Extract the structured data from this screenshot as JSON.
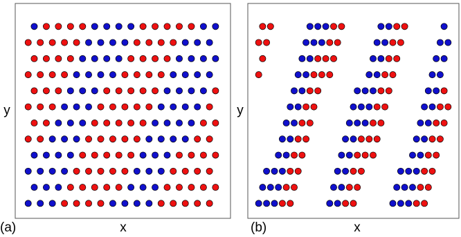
{
  "chart_data": [
    {
      "type": "scatter",
      "label": "(a)",
      "xlabel": "x",
      "ylabel": "y",
      "xlim": [
        0,
        100
      ],
      "ylim": [
        0,
        100
      ],
      "series": [
        {
          "color": "#ee1111",
          "x": [
            21,
            27,
            33,
            39,
            69,
            75,
            81,
            87,
            93,
            24,
            30,
            36,
            42,
            48,
            72,
            78,
            84,
            90,
            96,
            27,
            33,
            39,
            45,
            51,
            75,
            81,
            87,
            93,
            30,
            36,
            42,
            48,
            54,
            78,
            84,
            90,
            96,
            3,
            9,
            33,
            39,
            45,
            51,
            57,
            87,
            93,
            6,
            12,
            36,
            42,
            48,
            54,
            60,
            90,
            96,
            3,
            9,
            15,
            39,
            45,
            51,
            57,
            63,
            93,
            6,
            12,
            18,
            42,
            48,
            54,
            60,
            66,
            96,
            3,
            9,
            15,
            21,
            51,
            57,
            63,
            69,
            6,
            12,
            18,
            24,
            54,
            60,
            66,
            72,
            3,
            9,
            15,
            21,
            27,
            57,
            63,
            69,
            75,
            12,
            18,
            24,
            30,
            60,
            66,
            72,
            78,
            84
          ],
          "values": [
            4,
            4,
            4,
            4,
            4,
            4,
            4,
            4,
            4,
            12,
            12,
            12,
            12,
            12,
            12,
            12,
            12,
            12,
            12,
            20,
            20,
            20,
            20,
            20,
            20,
            20,
            20,
            20,
            28,
            28,
            28,
            28,
            28,
            28,
            28,
            28,
            28,
            36,
            36,
            36,
            36,
            36,
            36,
            36,
            36,
            36,
            44,
            44,
            44,
            44,
            44,
            44,
            44,
            44,
            44,
            52,
            52,
            52,
            52,
            52,
            52,
            52,
            52,
            52,
            60,
            60,
            60,
            60,
            60,
            60,
            60,
            60,
            60,
            68,
            68,
            68,
            68,
            68,
            68,
            68,
            68,
            76,
            76,
            76,
            76,
            76,
            76,
            76,
            76,
            84,
            84,
            84,
            84,
            84,
            84,
            84,
            84,
            84,
            92,
            92,
            92,
            92,
            92,
            92,
            92,
            92,
            92
          ]
        },
        {
          "color": "#1010cc",
          "x": [
            3,
            9,
            15,
            45,
            51,
            57,
            63,
            6,
            12,
            18,
            54,
            60,
            66,
            3,
            9,
            15,
            21,
            57,
            63,
            69,
            6,
            12,
            18,
            24,
            60,
            66,
            72,
            15,
            21,
            27,
            63,
            69,
            75,
            81,
            18,
            24,
            30,
            66,
            72,
            78,
            84,
            21,
            27,
            33,
            69,
            75,
            81,
            87,
            24,
            30,
            36,
            72,
            78,
            84,
            90,
            27,
            33,
            39,
            45,
            75,
            81,
            87,
            93,
            30,
            36,
            42,
            48,
            78,
            84,
            90,
            96,
            33,
            39,
            45,
            51,
            81,
            87,
            93,
            6,
            36,
            42,
            48,
            54,
            90,
            96
          ],
          "values": [
            4,
            4,
            4,
            4,
            4,
            4,
            4,
            12,
            12,
            12,
            12,
            12,
            12,
            20,
            20,
            20,
            20,
            20,
            20,
            20,
            28,
            28,
            28,
            28,
            28,
            28,
            28,
            36,
            36,
            36,
            36,
            36,
            36,
            36,
            44,
            44,
            44,
            44,
            44,
            44,
            44,
            52,
            52,
            52,
            52,
            52,
            52,
            52,
            60,
            60,
            60,
            60,
            60,
            60,
            60,
            68,
            68,
            68,
            68,
            68,
            68,
            68,
            68,
            76,
            76,
            76,
            76,
            76,
            76,
            76,
            76,
            84,
            84,
            84,
            84,
            84,
            84,
            84,
            92,
            92,
            92,
            92,
            92,
            92,
            92
          ]
        }
      ]
    },
    {
      "type": "scatter",
      "label": "(b)",
      "xlabel": "x",
      "ylabel": "y",
      "xlim": [
        0,
        100
      ],
      "ylim": [
        0,
        100
      ],
      "series": [
        {
          "color": "#ee1111",
          "x": [
            14,
            18,
            46,
            50,
            82,
            86,
            16,
            20,
            48,
            52,
            84,
            88,
            18,
            22,
            50,
            54,
            86,
            90,
            20,
            24,
            52,
            56,
            60,
            88,
            92,
            22,
            26,
            54,
            58,
            62,
            90,
            94,
            24,
            28,
            60,
            64,
            92,
            96,
            26,
            30,
            62,
            66,
            94,
            98,
            28,
            32,
            64,
            68,
            96,
            2,
            30,
            34,
            38,
            66,
            70,
            4,
            32,
            36,
            40,
            68,
            72,
            2,
            6,
            38,
            42,
            70,
            74,
            4,
            8,
            40,
            44,
            72,
            76
          ],
          "values": [
            4,
            4,
            4,
            4,
            4,
            4,
            12,
            12,
            12,
            12,
            12,
            12,
            20,
            20,
            20,
            20,
            20,
            20,
            28,
            28,
            28,
            28,
            28,
            28,
            28,
            36,
            36,
            36,
            36,
            36,
            36,
            36,
            44,
            44,
            44,
            44,
            44,
            44,
            52,
            52,
            52,
            52,
            52,
            52,
            60,
            60,
            60,
            60,
            60,
            68,
            68,
            68,
            68,
            68,
            68,
            76,
            76,
            76,
            76,
            76,
            76,
            84,
            84,
            84,
            84,
            84,
            84,
            92,
            92,
            92,
            92,
            92,
            92
          ]
        },
        {
          "color": "#1010cc",
          "x": [
            2,
            6,
            10,
            38,
            42,
            70,
            74,
            78,
            4,
            8,
            12,
            40,
            44,
            72,
            76,
            80,
            6,
            10,
            14,
            42,
            46,
            74,
            78,
            82,
            12,
            16,
            44,
            48,
            80,
            84,
            14,
            18,
            46,
            50,
            82,
            86,
            16,
            20,
            48,
            52,
            56,
            84,
            88,
            18,
            22,
            50,
            54,
            58,
            86,
            90,
            20,
            24,
            52,
            56,
            60,
            88,
            92,
            22,
            26,
            58,
            62,
            90,
            94,
            24,
            28,
            60,
            64,
            92,
            96,
            26,
            30,
            34,
            62,
            66,
            94,
            98,
            28,
            32,
            36,
            64,
            68,
            96
          ],
          "values": [
            4,
            4,
            4,
            4,
            4,
            4,
            4,
            4,
            12,
            12,
            12,
            12,
            12,
            12,
            12,
            12,
            20,
            20,
            20,
            20,
            20,
            20,
            20,
            20,
            28,
            28,
            28,
            28,
            28,
            28,
            36,
            36,
            36,
            36,
            36,
            36,
            44,
            44,
            44,
            44,
            44,
            44,
            44,
            52,
            52,
            52,
            52,
            52,
            52,
            52,
            60,
            60,
            60,
            60,
            60,
            60,
            60,
            68,
            68,
            68,
            68,
            68,
            68,
            76,
            76,
            76,
            76,
            76,
            76,
            84,
            84,
            84,
            84,
            84,
            84,
            84,
            92,
            92,
            92,
            92,
            92,
            92
          ]
        }
      ]
    }
  ]
}
